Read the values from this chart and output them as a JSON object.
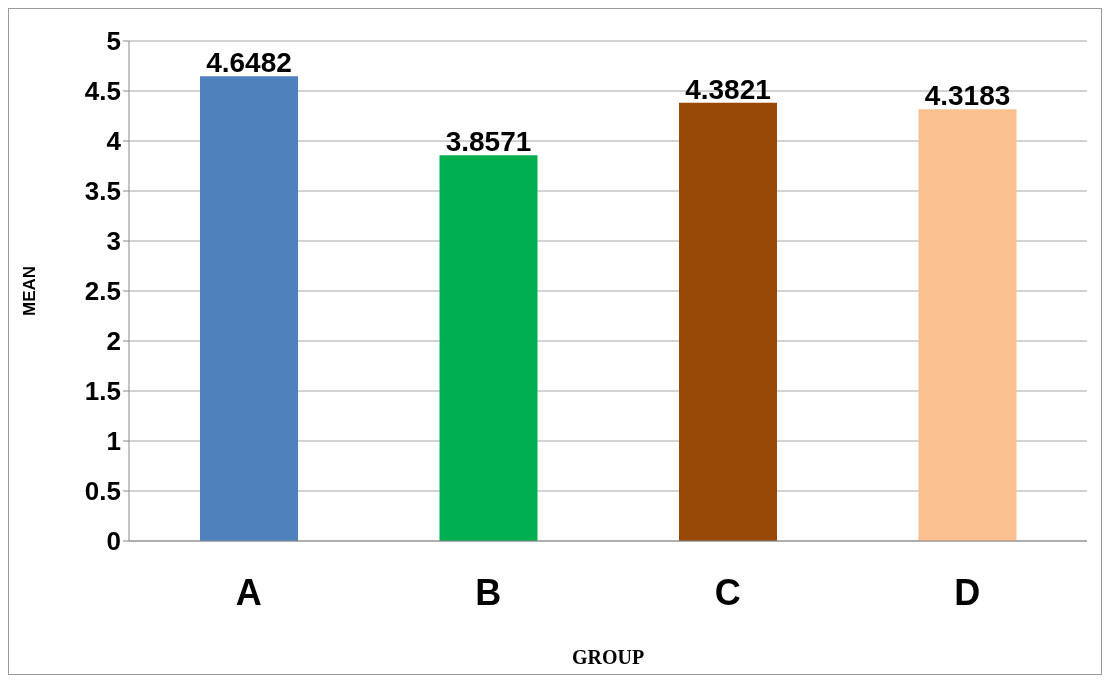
{
  "chart_data": {
    "type": "bar",
    "xlabel": "GROUP",
    "ylabel": "MEAN",
    "categories": [
      "A",
      "B",
      "C",
      "D"
    ],
    "values": [
      4.6482,
      3.8571,
      4.3821,
      4.3183
    ],
    "colors": [
      "#4f81bd",
      "#00b050",
      "#984807",
      "#fac08f"
    ],
    "ylim": [
      0,
      5
    ],
    "yticks": [
      0,
      0.5,
      1,
      1.5,
      2,
      2.5,
      3,
      3.5,
      4,
      4.5,
      5
    ],
    "grid": "y",
    "data_labels": true
  }
}
